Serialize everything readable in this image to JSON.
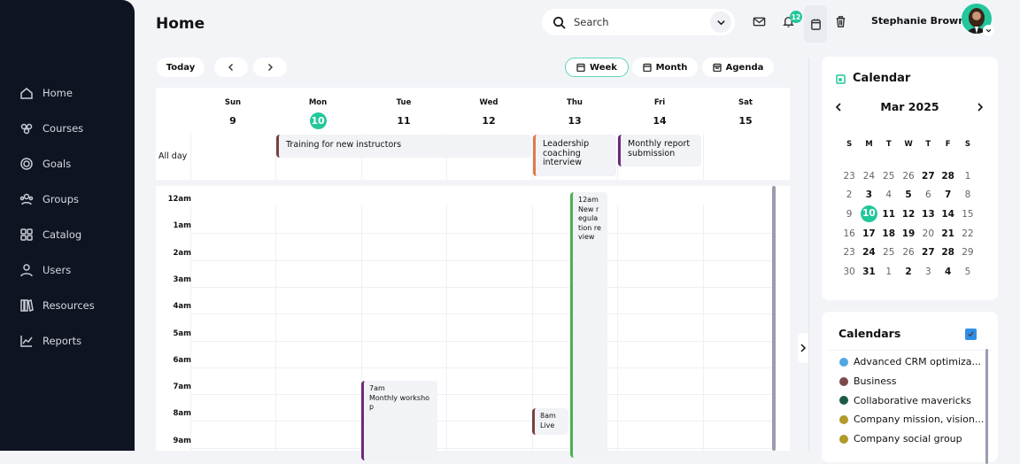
{
  "sidebar": {
    "items": [
      {
        "label": "Home",
        "icon": "home-icon"
      },
      {
        "label": "Courses",
        "icon": "courses-icon"
      },
      {
        "label": "Goals",
        "icon": "goals-icon"
      },
      {
        "label": "Groups",
        "icon": "groups-icon"
      },
      {
        "label": "Catalog",
        "icon": "catalog-icon"
      },
      {
        "label": "Users",
        "icon": "users-icon"
      },
      {
        "label": "Resources",
        "icon": "resources-icon"
      },
      {
        "label": "Reports",
        "icon": "reports-icon"
      }
    ]
  },
  "header": {
    "title": "Home",
    "search_placeholder": "Search",
    "notifications": "12",
    "user_name": "Stephanie Brown"
  },
  "toolbar": {
    "today": "Today",
    "views": [
      "Week",
      "Month",
      "Agenda"
    ],
    "active_view": "Week"
  },
  "week": {
    "days": [
      {
        "name": "Sun",
        "num": "9"
      },
      {
        "name": "Mon",
        "num": "10"
      },
      {
        "name": "Tue",
        "num": "11"
      },
      {
        "name": "Wed",
        "num": "12"
      },
      {
        "name": "Thu",
        "num": "13"
      },
      {
        "name": "Fri",
        "num": "14"
      },
      {
        "name": "Sat",
        "num": "15"
      }
    ],
    "today_index": 1,
    "all_day_label": "All day",
    "all_day_events": [
      {
        "title": "Training for new instructors",
        "color": "#7a4040"
      },
      {
        "title": "Leadership coaching interview",
        "color": "#e07a4a"
      },
      {
        "title": "Monthly report submission",
        "color": "#6b2a78"
      }
    ],
    "hours": [
      "12am",
      "1am",
      "2am",
      "3am",
      "4am",
      "5am",
      "6am",
      "7am",
      "8am",
      "9am"
    ],
    "events": [
      {
        "time": "7am",
        "title": "Monthly workshop",
        "color": "#6b2a78"
      },
      {
        "time": "8am",
        "title": "Live",
        "color": "#7a4040"
      },
      {
        "time": "12am",
        "title": "New regula tion review",
        "color": "#4caf50"
      }
    ]
  },
  "mini_calendar": {
    "title": "Calendar",
    "month": "Mar 2025",
    "weekdays": [
      "S",
      "M",
      "T",
      "W",
      "T",
      "F",
      "S"
    ],
    "weeks": [
      [
        [
          "23",
          0
        ],
        [
          "24",
          0
        ],
        [
          "25",
          0
        ],
        [
          "26",
          0
        ],
        [
          "27",
          1
        ],
        [
          "28",
          1
        ],
        [
          "1",
          0
        ]
      ],
      [
        [
          "2",
          0
        ],
        [
          "3",
          1
        ],
        [
          "4",
          0
        ],
        [
          "5",
          1
        ],
        [
          "6",
          0
        ],
        [
          "7",
          1
        ],
        [
          "8",
          0
        ]
      ],
      [
        [
          "9",
          0
        ],
        [
          "10",
          2
        ],
        [
          "11",
          1
        ],
        [
          "12",
          1
        ],
        [
          "13",
          1
        ],
        [
          "14",
          1
        ],
        [
          "15",
          0
        ]
      ],
      [
        [
          "16",
          0
        ],
        [
          "17",
          1
        ],
        [
          "18",
          1
        ],
        [
          "19",
          1
        ],
        [
          "20",
          0
        ],
        [
          "21",
          1
        ],
        [
          "22",
          0
        ]
      ],
      [
        [
          "23",
          0
        ],
        [
          "24",
          1
        ],
        [
          "25",
          0
        ],
        [
          "26",
          0
        ],
        [
          "27",
          1
        ],
        [
          "28",
          1
        ],
        [
          "29",
          0
        ]
      ],
      [
        [
          "30",
          0
        ],
        [
          "31",
          1
        ],
        [
          "1",
          0
        ],
        [
          "2",
          1
        ],
        [
          "3",
          0
        ],
        [
          "4",
          1
        ],
        [
          "5",
          0
        ]
      ]
    ]
  },
  "calendars": {
    "title": "Calendars",
    "items": [
      {
        "label": "Advanced CRM optimiza...",
        "color": "#4fa8e0"
      },
      {
        "label": "Business",
        "color": "#7a4a4a"
      },
      {
        "label": "Collaborative mavericks",
        "color": "#1e5a4a"
      },
      {
        "label": "Company mission, vision...",
        "color": "#b09a2a"
      },
      {
        "label": "Company social group",
        "color": "#b09a2a"
      }
    ]
  },
  "colors": {
    "accent": "#22c79b",
    "sidebar": "#0f1422"
  }
}
